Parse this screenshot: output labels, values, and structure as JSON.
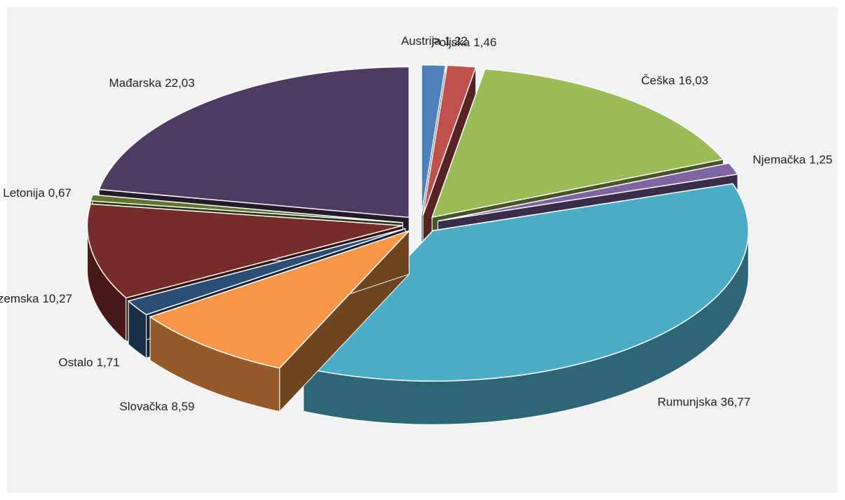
{
  "chart_data": {
    "type": "pie3d",
    "categories": [
      "Austrija",
      "Poljska",
      "Češka",
      "Njemačka",
      "Rumunjska",
      "Slovačka",
      "Ostalo",
      "Nizozemska",
      "Letonija",
      "Mađarska"
    ],
    "values": [
      1.22,
      1.46,
      16.03,
      1.25,
      36.77,
      8.59,
      1.71,
      10.27,
      0.67,
      22.03
    ],
    "value_labels": [
      "1,22",
      "1,46",
      "16,03",
      "1,25",
      "36,77",
      "8,59",
      "1,71",
      "10,27",
      "0,67",
      "22,03"
    ],
    "colors": [
      "#4f81bd",
      "#c0504d",
      "#9bbb59",
      "#8064a2",
      "#4bacc6",
      "#f79646",
      "#2c4d75",
      "#772c2a",
      "#5f7530",
      "#4d3b62"
    ]
  }
}
